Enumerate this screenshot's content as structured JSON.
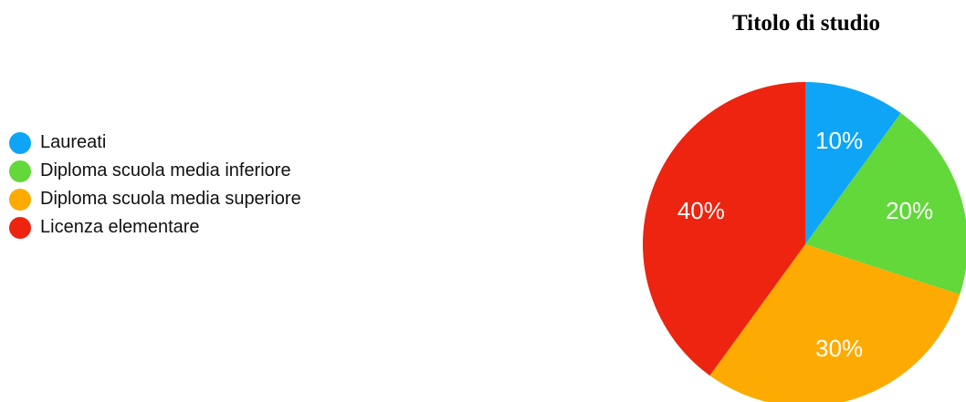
{
  "chart_data": {
    "type": "pie",
    "title": "Titolo di studio",
    "categories": [
      "Laureati",
      "Diploma scuola media inferiore",
      "Diploma scuola media superiore",
      "Licenza elementare"
    ],
    "values": [
      10,
      20,
      30,
      40
    ],
    "slice_labels": [
      "10%",
      "20%",
      "30%",
      "40%"
    ],
    "colors": [
      "#0ea5f7",
      "#62d83a",
      "#fdab02",
      "#ed2410"
    ],
    "legend_position": "left",
    "start_angle": "12 o'clock",
    "direction": "clockwise"
  }
}
